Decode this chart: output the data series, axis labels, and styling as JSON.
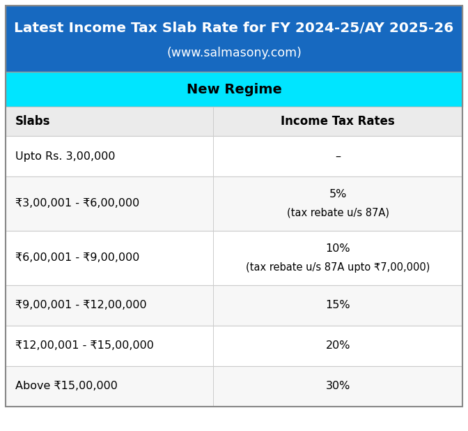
{
  "title_line1": "Latest Income Tax Slab Rate for FY 2024-25/AY 2025-26",
  "title_line2": "(www.salmasony.com)",
  "title_bg_color": "#1769C0",
  "title_text_color": "#FFFFFF",
  "regime_label": "New Regime",
  "regime_bg_color": "#00E5FF",
  "regime_text_color": "#000000",
  "header_bg_color": "#EBEBEB",
  "header_col1": "Slabs",
  "header_col2": "Income Tax Rates",
  "row_bg_white": "#FFFFFF",
  "row_bg_light": "#F7F7F7",
  "border_color": "#CCCCCC",
  "rows": [
    {
      "slab": "Upto Rs. 3,00,000",
      "rate": "–",
      "two_line": false
    },
    {
      "slab": "₹3,00,001 - ₹6,00,000",
      "rate": "5%\n(tax rebate u/s 87A)",
      "two_line": true
    },
    {
      "slab": "₹6,00,001 - ₹9,00,000",
      "rate": "10%\n(tax rebate u/s 87A upto ₹7,00,000)",
      "two_line": true
    },
    {
      "slab": "₹9,00,001 - ₹12,00,000",
      "rate": "15%",
      "two_line": false
    },
    {
      "slab": "₹12,00,001 - ₹15,00,000",
      "rate": "20%",
      "two_line": false
    },
    {
      "slab": "Above ₹15,00,000",
      "rate": "30%",
      "two_line": false
    }
  ],
  "col_split": 0.455,
  "figwidth": 6.72,
  "figheight": 6.18,
  "dpi": 100,
  "title_fontsize": 14.5,
  "subtitle_fontsize": 12.5,
  "regime_fontsize": 14,
  "header_fontsize": 12,
  "cell_fontsize": 11.5,
  "cell_small_fontsize": 10.5
}
